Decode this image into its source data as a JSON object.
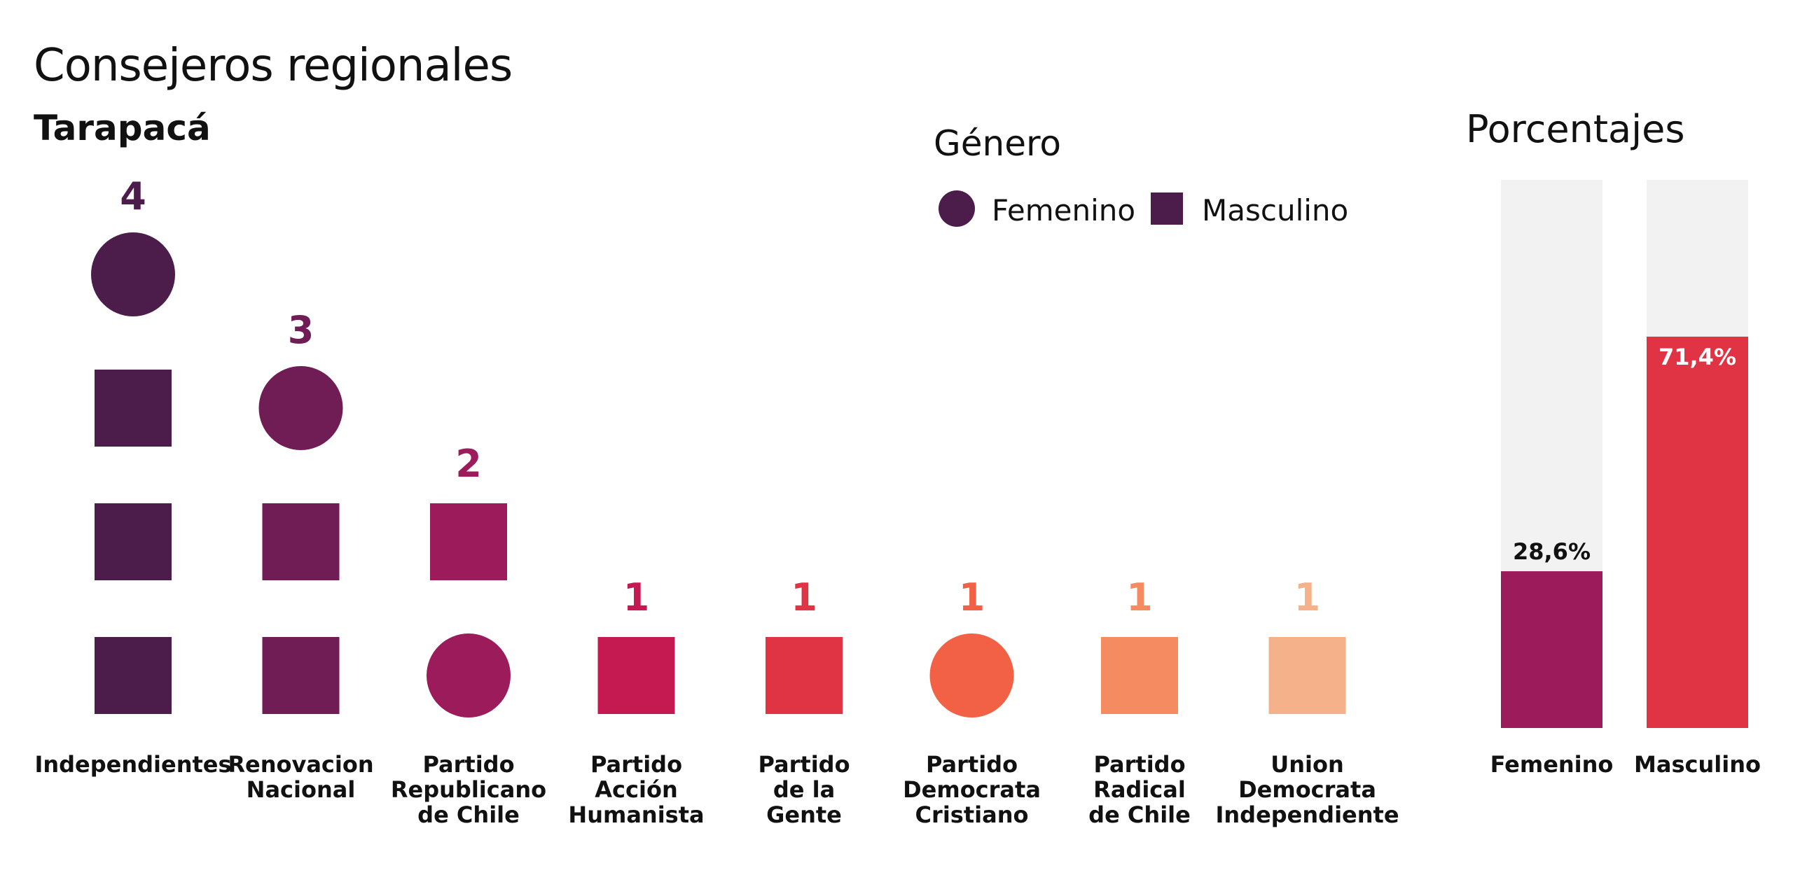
{
  "title": "Consejeros regionales",
  "subtitle": "Tarapacá",
  "legend": {
    "title": "Género",
    "items": [
      {
        "label": "Femenino",
        "shape": "circle",
        "color": "#4c1d4b"
      },
      {
        "label": "Masculino",
        "shape": "square",
        "color": "#4c1d4b"
      }
    ]
  },
  "percent_panel_title": "Porcentajes",
  "chart_data": [
    {
      "type": "unit-stack",
      "title": "Consejeros regionales",
      "subtitle": "Tarapacá",
      "legend_title": "Género",
      "legend_placement": "top-center",
      "shapes": {
        "Femenino": "circle",
        "Masculino": "square"
      },
      "parties": [
        {
          "name": "Independientes",
          "label_lines": [
            "Independientes"
          ],
          "total": 4,
          "color": "#4c1d4b",
          "members": [
            "Masculino",
            "Masculino",
            "Masculino",
            "Femenino"
          ]
        },
        {
          "name": "Renovacion Nacional",
          "label_lines": [
            "Renovacion",
            "Nacional"
          ],
          "total": 3,
          "color": "#701c55",
          "members": [
            "Masculino",
            "Masculino",
            "Femenino"
          ]
        },
        {
          "name": "Partido Republicano de Chile",
          "label_lines": [
            "Partido",
            "Republicano",
            "de Chile"
          ],
          "total": 2,
          "color": "#9c1b5b",
          "members": [
            "Femenino",
            "Masculino"
          ]
        },
        {
          "name": "Partido Acción Humanista",
          "label_lines": [
            "Partido",
            "Acción",
            "Humanista"
          ],
          "total": 1,
          "color": "#c41a51",
          "members": [
            "Masculino"
          ]
        },
        {
          "name": "Partido de la Gente",
          "label_lines": [
            "Partido",
            "de la",
            "Gente"
          ],
          "total": 1,
          "color": "#e03444",
          "members": [
            "Masculino"
          ]
        },
        {
          "name": "Partido Democrata Cristiano",
          "label_lines": [
            "Partido",
            "Democrata",
            "Cristiano"
          ],
          "total": 1,
          "color": "#f26145",
          "members": [
            "Femenino"
          ]
        },
        {
          "name": "Partido Radical de Chile",
          "label_lines": [
            "Partido",
            "Radical",
            "de Chile"
          ],
          "total": 1,
          "color": "#f58b61",
          "members": [
            "Masculino"
          ]
        },
        {
          "name": "Union Democrata Independiente",
          "label_lines": [
            "Union",
            "Democrata",
            "Independiente"
          ],
          "total": 1,
          "color": "#f5b18a",
          "members": [
            "Masculino"
          ]
        }
      ]
    },
    {
      "type": "bar",
      "title": "Porcentajes",
      "categories": [
        "Femenino",
        "Masculino"
      ],
      "values": [
        28.6,
        71.4
      ],
      "value_labels": [
        "28,6%",
        "71,4%"
      ],
      "ylim": [
        0,
        100
      ],
      "colors": [
        "#9c1b5b",
        "#e03444"
      ],
      "track_color": "#f2f2f2",
      "label_colors": [
        "#111111",
        "#ffffff"
      ],
      "label_placement": [
        "above",
        "inside-top"
      ]
    }
  ]
}
